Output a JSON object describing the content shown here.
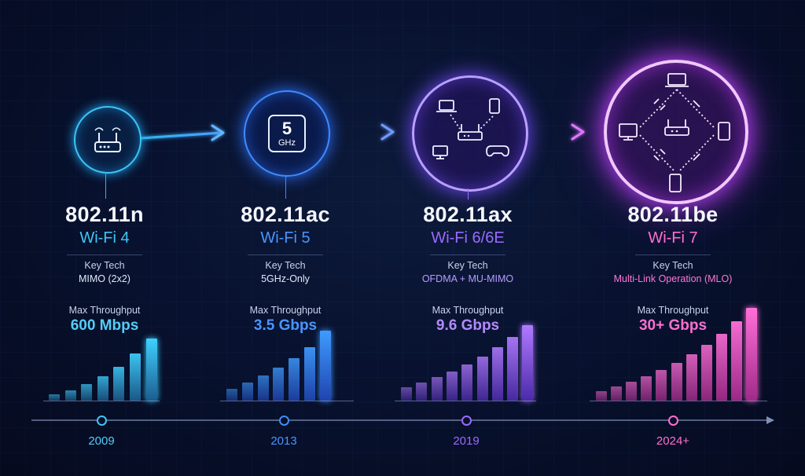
{
  "generations": [
    {
      "standard": "802.11n",
      "name": "Wi-Fi 4",
      "key_tech_label": "Key Tech",
      "key_tech": "MIMO (2x2)",
      "throughput_label": "Max Throughput",
      "throughput": "600 Mbps",
      "year": "2009",
      "icon": "router-icon",
      "color": "#34c3f5",
      "bars": [
        0.08,
        0.14,
        0.22,
        0.32,
        0.45,
        0.62,
        0.82
      ]
    },
    {
      "standard": "802.11ac",
      "name": "Wi-Fi 5",
      "key_tech_label": "Key Tech",
      "key_tech": "5GHz-Only",
      "throughput_label": "Max Throughput",
      "throughput": "3.5 Gbps",
      "year": "2013",
      "icon": "5ghz-icon",
      "icon_text_big": "5",
      "icon_text_small": "GHz",
      "color": "#3b8bff",
      "bars": [
        0.16,
        0.24,
        0.33,
        0.44,
        0.56,
        0.71,
        0.93
      ]
    },
    {
      "standard": "802.11ax",
      "name": "Wi-Fi 6/6E",
      "key_tech_label": "Key Tech",
      "key_tech": "OFDMA + MU-MIMO",
      "throughput_label": "Max Throughput",
      "throughput": "9.6 Gbps",
      "year": "2019",
      "icon": "router-devices-icon",
      "color": "#9a6bff",
      "bars": [
        0.18,
        0.24,
        0.31,
        0.39,
        0.48,
        0.58,
        0.71,
        0.84,
        1.0
      ]
    },
    {
      "standard": "802.11be",
      "name": "Wi-Fi 7",
      "key_tech_label": "Key Tech",
      "key_tech": "Multi-Link Operation (MLO)",
      "throughput_label": "Max Throughput",
      "throughput": "30+ Gbps",
      "year": "2024+",
      "icon": "multi-link-network-icon",
      "color": "#ff5fc8",
      "bars": [
        0.1,
        0.15,
        0.2,
        0.26,
        0.33,
        0.41,
        0.5,
        0.6,
        0.72,
        0.86,
        1.0
      ]
    }
  ],
  "colors": {
    "background": "#050a1e",
    "timeline": "#9aa6c8"
  }
}
